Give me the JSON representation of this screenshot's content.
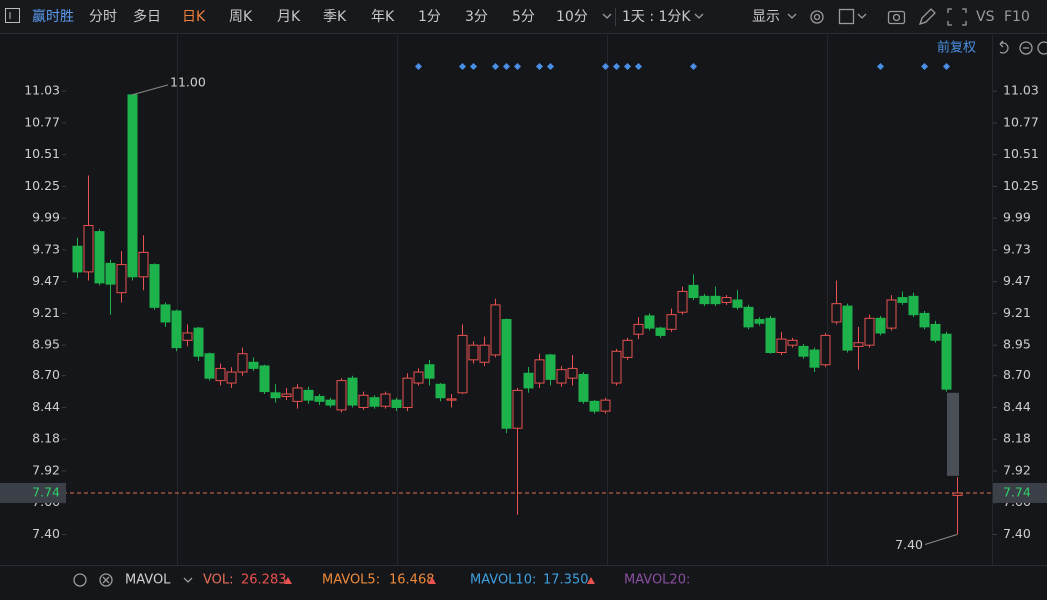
{
  "toolbar": {
    "stock": "赢时胜",
    "tabs": [
      "分时",
      "多日",
      "日K",
      "周K",
      "月K",
      "季K",
      "年K",
      "1分",
      "3分",
      "5分",
      "10分"
    ],
    "period": "1天 : 1分K",
    "display": "显示",
    "links": [
      "VS",
      "F10"
    ],
    "adjust": "前复权"
  },
  "indicator_bar": {
    "name": "MAVOL",
    "items": [
      {
        "label": "VOL:",
        "value": "26.283"
      },
      {
        "label": "MAVOL5:",
        "value": "16.468"
      },
      {
        "label": "MAVOL10:",
        "value": "17.350"
      },
      {
        "label": "MAVOL20:"
      }
    ]
  },
  "chart_data": {
    "type": "candlestick",
    "open": [
      9.76,
      9.55,
      9.88,
      9.62,
      9.38,
      11.0,
      9.51,
      9.61,
      9.28,
      9.23,
      8.99,
      9.09,
      8.88,
      8.66,
      8.64,
      8.73,
      8.81,
      8.78,
      8.56,
      8.53,
      8.49,
      8.58,
      8.53,
      8.5,
      8.42,
      8.68,
      8.44,
      8.52,
      8.45,
      8.5,
      8.44,
      8.64,
      8.79,
      8.63,
      8.5,
      8.56,
      8.83,
      8.81,
      8.87,
      9.16,
      8.27,
      8.72,
      8.64,
      8.87,
      8.64,
      8.68,
      8.71,
      8.49,
      8.41,
      8.64,
      8.85,
      9.04,
      9.19,
      9.09,
      9.08,
      9.22,
      9.44,
      9.35,
      9.35,
      9.3,
      9.32,
      9.26,
      9.16,
      9.17,
      8.89,
      8.95,
      8.94,
      8.91,
      8.79,
      9.14,
      9.27,
      8.94,
      8.95,
      9.17,
      9.09,
      9.34,
      9.35,
      9.21,
      9.12,
      9.04,
      7.72
    ],
    "high": [
      9.83,
      10.34,
      9.9,
      9.65,
      9.72,
      11.0,
      9.85,
      9.62,
      9.3,
      9.24,
      9.12,
      9.1,
      8.89,
      8.8,
      8.77,
      8.93,
      8.85,
      8.79,
      8.63,
      8.6,
      8.63,
      8.61,
      8.55,
      8.52,
      8.68,
      8.7,
      8.57,
      8.54,
      8.57,
      8.52,
      8.72,
      8.76,
      8.83,
      8.64,
      8.55,
      9.12,
      8.98,
      9.02,
      9.33,
      9.17,
      8.6,
      8.77,
      8.88,
      8.88,
      8.78,
      8.87,
      8.73,
      8.5,
      8.52,
      8.92,
      9.01,
      9.18,
      9.21,
      9.1,
      9.25,
      9.43,
      9.53,
      9.37,
      9.43,
      9.36,
      9.4,
      9.28,
      9.18,
      9.19,
      9.06,
      9.01,
      8.96,
      8.93,
      9.05,
      9.48,
      9.29,
      9.1,
      9.2,
      9.19,
      9.36,
      9.39,
      9.38,
      9.23,
      9.15,
      9.06,
      7.87
    ],
    "low": [
      9.5,
      9.48,
      9.44,
      9.2,
      9.3,
      9.48,
      9.4,
      9.24,
      9.1,
      8.9,
      8.94,
      8.82,
      8.66,
      8.62,
      8.6,
      8.7,
      8.74,
      8.55,
      8.48,
      8.5,
      8.43,
      8.47,
      8.46,
      8.44,
      8.4,
      8.44,
      8.42,
      8.43,
      8.43,
      8.41,
      8.41,
      8.62,
      8.62,
      8.49,
      8.44,
      8.55,
      8.8,
      8.78,
      8.85,
      8.23,
      7.56,
      8.56,
      8.6,
      8.62,
      8.61,
      8.62,
      8.47,
      8.39,
      8.39,
      8.62,
      8.83,
      9.0,
      9.07,
      9.01,
      9.06,
      9.2,
      9.32,
      9.27,
      9.27,
      9.28,
      9.24,
      9.08,
      9.11,
      8.88,
      8.87,
      8.93,
      8.84,
      8.73,
      8.77,
      9.12,
      8.89,
      8.75,
      8.93,
      9.03,
      9.07,
      9.28,
      9.18,
      9.08,
      8.97,
      8.57,
      7.4
    ],
    "close": [
      9.55,
      9.93,
      9.46,
      9.45,
      9.61,
      9.51,
      9.71,
      9.26,
      9.14,
      8.93,
      9.05,
      8.86,
      8.68,
      8.76,
      8.73,
      8.88,
      8.76,
      8.57,
      8.52,
      8.55,
      8.6,
      8.5,
      8.49,
      8.46,
      8.66,
      8.46,
      8.54,
      8.45,
      8.55,
      8.44,
      8.68,
      8.73,
      8.68,
      8.52,
      8.51,
      9.03,
      8.95,
      8.95,
      9.28,
      8.27,
      8.58,
      8.6,
      8.83,
      8.67,
      8.75,
      8.76,
      8.49,
      8.41,
      8.5,
      8.9,
      8.99,
      9.12,
      9.09,
      9.03,
      9.2,
      9.39,
      9.34,
      9.29,
      9.29,
      9.34,
      9.26,
      9.1,
      9.13,
      8.89,
      9.0,
      8.99,
      8.86,
      8.77,
      9.03,
      9.29,
      8.91,
      8.97,
      9.17,
      9.05,
      9.32,
      9.3,
      9.2,
      9.1,
      8.99,
      8.59,
      7.74
    ],
    "max_label": "11.00",
    "min_label": "7.40",
    "last_price": 7.74,
    "gap_range": [
      7.88,
      8.56
    ],
    "ylim": [
      7.15,
      11.49
    ],
    "yticks": [
      11.03,
      10.77,
      10.51,
      10.25,
      9.99,
      9.73,
      9.47,
      9.21,
      8.95,
      {
        "value": 8.7,
        "label": "8.70"
      },
      8.44,
      8.18,
      7.92,
      7.66,
      {
        "value": 7.4,
        "label": "7.40"
      }
    ],
    "up_color": "#e8524f",
    "down_color": "#1db24c",
    "gap_color": "#4a4f57",
    "last_price_color": "#e0704a"
  }
}
